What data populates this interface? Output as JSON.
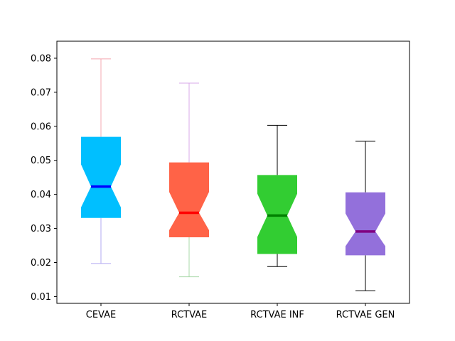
{
  "chart_data": {
    "type": "box",
    "title": "",
    "xlabel": "",
    "ylabel": "",
    "ylim": [
      0.008,
      0.085
    ],
    "yticks": [
      0.01,
      0.02,
      0.03,
      0.04,
      0.05,
      0.06,
      0.07,
      0.08
    ],
    "ytick_labels": [
      "0.01",
      "0.02",
      "0.03",
      "0.04",
      "0.05",
      "0.06",
      "0.07",
      "0.08"
    ],
    "notched": true,
    "grid": false,
    "legend": "none",
    "categories": [
      "CEVAE",
      "RCTVAE",
      "RCTVAE INF",
      "RCTVAE GEN"
    ],
    "boxes": [
      {
        "label": "CEVAE",
        "whisker_low": 0.0197,
        "q1": 0.0331,
        "median": 0.0423,
        "q3": 0.0569,
        "whisker_high": 0.0798,
        "notch_low": 0.0362,
        "notch_high": 0.0488,
        "fill": "#00bfff",
        "median_color": "#0000ff",
        "lower_whisker_color": "#b0a8f0",
        "upper_whisker_color": "#f4a8b0"
      },
      {
        "label": "RCTVAE",
        "whisker_low": 0.0158,
        "q1": 0.0274,
        "median": 0.0346,
        "q3": 0.0494,
        "whisker_high": 0.0727,
        "notch_low": 0.0295,
        "notch_high": 0.0407,
        "fill": "#ff6347",
        "median_color": "#ff0000",
        "lower_whisker_color": "#a8d8a8",
        "upper_whisker_color": "#d8a8e8"
      },
      {
        "label": "RCTVAE INF",
        "whisker_low": 0.0188,
        "q1": 0.0225,
        "median": 0.0338,
        "q3": 0.0457,
        "whisker_high": 0.0603,
        "notch_low": 0.0275,
        "notch_high": 0.0402,
        "fill": "#32cd32",
        "median_color": "#008000",
        "lower_whisker_color": "#000000",
        "upper_whisker_color": "#000000"
      },
      {
        "label": "RCTVAE GEN",
        "whisker_low": 0.0117,
        "q1": 0.0221,
        "median": 0.0291,
        "q3": 0.0406,
        "whisker_high": 0.0556,
        "notch_low": 0.0248,
        "notch_high": 0.0344,
        "fill": "#9370db",
        "median_color": "#800080",
        "lower_whisker_color": "#000000",
        "upper_whisker_color": "#000000"
      }
    ]
  }
}
